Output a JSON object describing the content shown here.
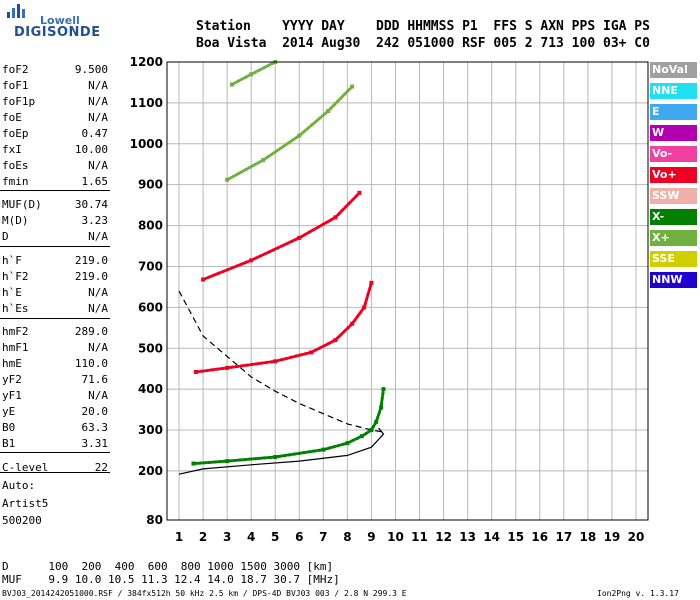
{
  "logo": {
    "line1": "Lowell",
    "line2": "DIGISONDE"
  },
  "header": {
    "row1": "Station    YYYY DAY    DDD HHMMSS P1  FFS S AXN PPS IGA PS",
    "row2": "Boa Vista  2014 Aug30  242 051000 RSF 005 2 713 100 03+ C0"
  },
  "params": [
    {
      "key": "foF2",
      "value": "9.500"
    },
    {
      "key": "foF1",
      "value": "N/A"
    },
    {
      "key": "foF1p",
      "value": "N/A"
    },
    {
      "key": "foE",
      "value": "N/A"
    },
    {
      "key": "foEp",
      "value": "0.47"
    },
    {
      "key": "fxI",
      "value": "10.00"
    },
    {
      "key": "foEs",
      "value": "N/A"
    },
    {
      "key": "fmin",
      "value": "1.65"
    },
    {
      "key": "MUF(D)",
      "value": "30.74"
    },
    {
      "key": "M(D)",
      "value": "3.23"
    },
    {
      "key": "D",
      "value": "N/A"
    },
    {
      "key": "h`F",
      "value": "219.0"
    },
    {
      "key": "h`F2",
      "value": "219.0"
    },
    {
      "key": "h`E",
      "value": "N/A"
    },
    {
      "key": "h`Es",
      "value": "N/A"
    },
    {
      "key": "hmF2",
      "value": "289.0"
    },
    {
      "key": "hmF1",
      "value": "N/A"
    },
    {
      "key": "hmE",
      "value": "110.0"
    },
    {
      "key": "yF2",
      "value": "71.6"
    },
    {
      "key": "yF1",
      "value": "N/A"
    },
    {
      "key": "yE",
      "value": "20.0"
    },
    {
      "key": "B0",
      "value": "63.3"
    },
    {
      "key": "B1",
      "value": "3.31"
    },
    {
      "key": "C-level",
      "value": "22"
    }
  ],
  "auto": {
    "label": "Auto:",
    "artist": "Artist5",
    "code": "500200"
  },
  "legend": [
    {
      "label": "NoVal",
      "color": "#a0a0a0"
    },
    {
      "label": "NNE",
      "color": "#20e0f0"
    },
    {
      "label": "E",
      "color": "#40a8f0"
    },
    {
      "label": "W",
      "color": "#b000b0"
    },
    {
      "label": "Vo-",
      "color": "#f040a0"
    },
    {
      "label": "Vo+",
      "color": "#f00020"
    },
    {
      "label": "SSW",
      "color": "#f0b0a8"
    },
    {
      "label": "X-",
      "color": "#008000"
    },
    {
      "label": "X+",
      "color": "#70b040"
    },
    {
      "label": "SSE",
      "color": "#d0d000"
    },
    {
      "label": "NNW",
      "color": "#2000d0"
    }
  ],
  "footer": {
    "d_row": "D      100  200  400  600  800 1000 1500 3000 [km]",
    "muf_row": "MUF    9.9 10.0 10.5 11.3 12.4 14.0 18.7 30.7 [MHz]",
    "file": "BVJ03_2014242051000.RSF / 384fx512h 50 kHz 2.5 km / DPS-4D BVJ03 003 / 2.8 N 299.3 E",
    "version": "Ion2Png v. 1.3.17"
  },
  "chart_data": {
    "type": "scatter",
    "xlim": [
      0.5,
      20.5
    ],
    "ylim": [
      80,
      1200
    ],
    "x_ticks": [
      1,
      2,
      3,
      4,
      5,
      6,
      7,
      8,
      9,
      10,
      11,
      12,
      13,
      14,
      15,
      16,
      17,
      18,
      19,
      20
    ],
    "y_ticks": [
      80,
      200,
      300,
      400,
      500,
      600,
      700,
      800,
      900,
      1000,
      1100,
      1200
    ],
    "grid": true,
    "traces": [
      {
        "name": "X-",
        "points": [
          [
            1.6,
            218
          ],
          [
            3,
            224
          ],
          [
            5,
            234
          ],
          [
            7,
            252
          ],
          [
            8,
            268
          ],
          [
            8.6,
            285
          ],
          [
            9,
            300
          ],
          [
            9.2,
            320
          ],
          [
            9.4,
            355
          ],
          [
            9.5,
            400
          ]
        ]
      },
      {
        "name": "Vo+",
        "points": [
          [
            1.7,
            442
          ],
          [
            3,
            452
          ],
          [
            5,
            468
          ],
          [
            6.5,
            490
          ],
          [
            7.5,
            520
          ],
          [
            8.2,
            560
          ],
          [
            8.7,
            600
          ],
          [
            9,
            660
          ]
        ]
      },
      {
        "name": "Vo+",
        "points": [
          [
            2,
            668
          ],
          [
            4,
            715
          ],
          [
            6,
            770
          ],
          [
            7.5,
            820
          ],
          [
            8.5,
            880
          ]
        ]
      },
      {
        "name": "X+",
        "points": [
          [
            3,
            912
          ],
          [
            4.5,
            960
          ],
          [
            6,
            1020
          ],
          [
            7.2,
            1080
          ],
          [
            8.2,
            1140
          ]
        ]
      },
      {
        "name": "X+",
        "points": [
          [
            3.2,
            1145
          ],
          [
            4,
            1170
          ],
          [
            5,
            1200
          ]
        ]
      }
    ],
    "profile_solid": [
      [
        1,
        192
      ],
      [
        2,
        205
      ],
      [
        4,
        215
      ],
      [
        6,
        224
      ],
      [
        8,
        238
      ],
      [
        9,
        258
      ],
      [
        9.5,
        290
      ],
      [
        9.3,
        305
      ]
    ],
    "profile_dashed": [
      [
        1,
        640
      ],
      [
        2,
        530
      ],
      [
        3,
        480
      ],
      [
        4,
        430
      ],
      [
        5,
        395
      ],
      [
        6,
        365
      ],
      [
        7,
        340
      ],
      [
        8,
        315
      ],
      [
        9,
        300
      ],
      [
        9.5,
        295
      ]
    ]
  }
}
